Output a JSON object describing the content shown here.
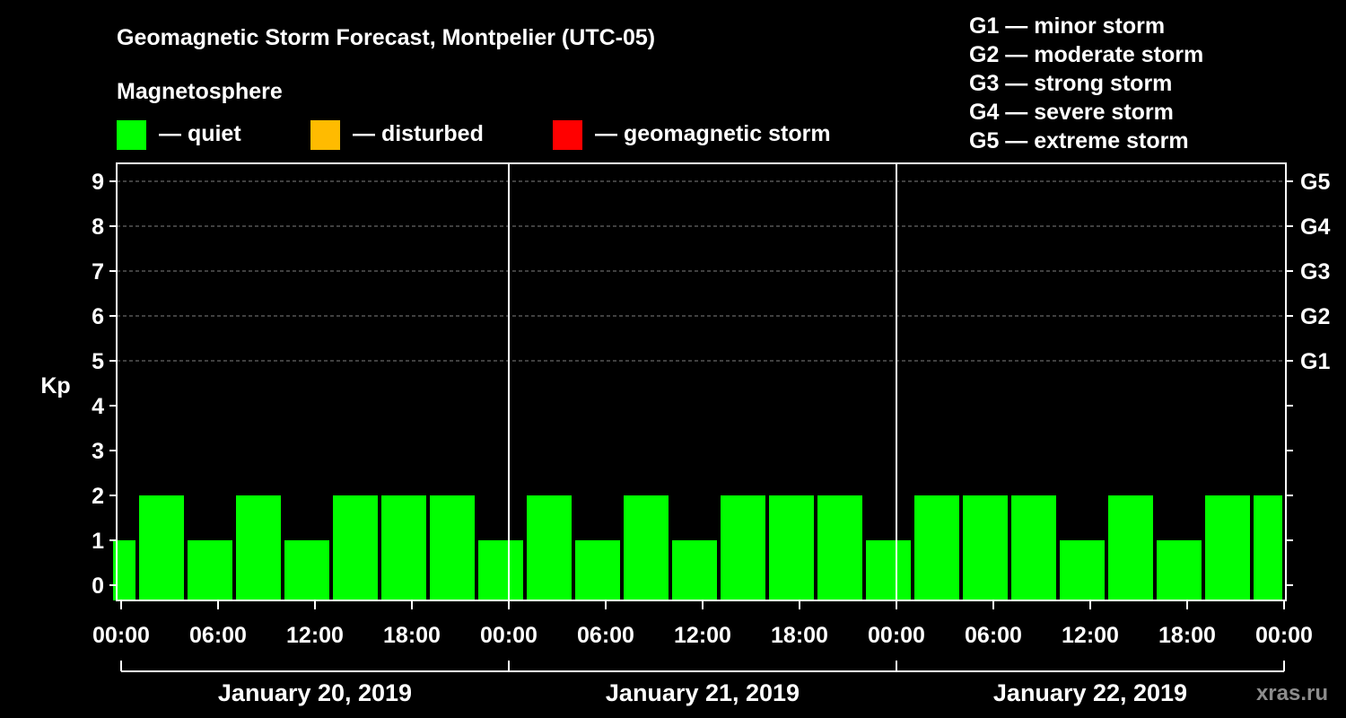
{
  "chart_data": {
    "type": "bar",
    "title": "Geomagnetic Storm Forecast, Montpelier (UTC-05)",
    "legend_heading": "Magnetosphere",
    "legend": [
      {
        "label": "— quiet",
        "color": "#00ff00"
      },
      {
        "label": "— disturbed",
        "color": "#ffbb00"
      },
      {
        "label": "— geomagnetic storm",
        "color": "#ff0000"
      }
    ],
    "storm_scale": [
      "G1 — minor storm",
      "G2 — moderate storm",
      "G3 — strong storm",
      "G4 — severe storm",
      "G5 — extreme storm"
    ],
    "ylabel": "Kp",
    "ylim": [
      0,
      9
    ],
    "yticks": [
      "0",
      "1",
      "2",
      "3",
      "4",
      "5",
      "6",
      "7",
      "8",
      "9"
    ],
    "right_ticks": [
      {
        "kp": 5,
        "label": "G1"
      },
      {
        "kp": 6,
        "label": "G2"
      },
      {
        "kp": 7,
        "label": "G3"
      },
      {
        "kp": 8,
        "label": "G4"
      },
      {
        "kp": 9,
        "label": "G5"
      }
    ],
    "x_range_hours": [
      -0.5,
      72
    ],
    "xticks": [
      {
        "hour": 0,
        "label": "00:00"
      },
      {
        "hour": 6,
        "label": "06:00"
      },
      {
        "hour": 12,
        "label": "12:00"
      },
      {
        "hour": 18,
        "label": "18:00"
      },
      {
        "hour": 24,
        "label": "00:00"
      },
      {
        "hour": 30,
        "label": "06:00"
      },
      {
        "hour": 36,
        "label": "12:00"
      },
      {
        "hour": 42,
        "label": "18:00"
      },
      {
        "hour": 48,
        "label": "00:00"
      },
      {
        "hour": 54,
        "label": "06:00"
      },
      {
        "hour": 60,
        "label": "12:00"
      },
      {
        "hour": 66,
        "label": "18:00"
      },
      {
        "hour": 72,
        "label": "00:00"
      }
    ],
    "day_dividers_hours": [
      24,
      48
    ],
    "days": [
      {
        "label": "January 20, 2019",
        "start": 0,
        "end": 24
      },
      {
        "label": "January 21, 2019",
        "start": 24,
        "end": 48
      },
      {
        "label": "January 22, 2019",
        "start": 48,
        "end": 72
      }
    ],
    "bars": [
      {
        "start": -0.5,
        "end": 1.0,
        "kp": 1
      },
      {
        "start": 1,
        "end": 4,
        "kp": 2
      },
      {
        "start": 4,
        "end": 7,
        "kp": 1
      },
      {
        "start": 7,
        "end": 10,
        "kp": 2
      },
      {
        "start": 10,
        "end": 13,
        "kp": 1
      },
      {
        "start": 13,
        "end": 16,
        "kp": 2
      },
      {
        "start": 16,
        "end": 19,
        "kp": 2
      },
      {
        "start": 19,
        "end": 22,
        "kp": 2
      },
      {
        "start": 22,
        "end": 25,
        "kp": 1
      },
      {
        "start": 25,
        "end": 28,
        "kp": 2
      },
      {
        "start": 28,
        "end": 31,
        "kp": 1
      },
      {
        "start": 31,
        "end": 34,
        "kp": 2
      },
      {
        "start": 34,
        "end": 37,
        "kp": 1
      },
      {
        "start": 37,
        "end": 40,
        "kp": 2
      },
      {
        "start": 40,
        "end": 43,
        "kp": 2
      },
      {
        "start": 43,
        "end": 46,
        "kp": 2
      },
      {
        "start": 46,
        "end": 49,
        "kp": 1
      },
      {
        "start": 49,
        "end": 52,
        "kp": 2
      },
      {
        "start": 52,
        "end": 55,
        "kp": 2
      },
      {
        "start": 55,
        "end": 58,
        "kp": 2
      },
      {
        "start": 58,
        "end": 61,
        "kp": 1
      },
      {
        "start": 61,
        "end": 64,
        "kp": 2
      },
      {
        "start": 64,
        "end": 67,
        "kp": 1
      },
      {
        "start": 67,
        "end": 70,
        "kp": 2
      },
      {
        "start": 70,
        "end": 72,
        "kp": 2
      }
    ],
    "bar_color": "#00ff00",
    "watermark": "xras.ru"
  }
}
